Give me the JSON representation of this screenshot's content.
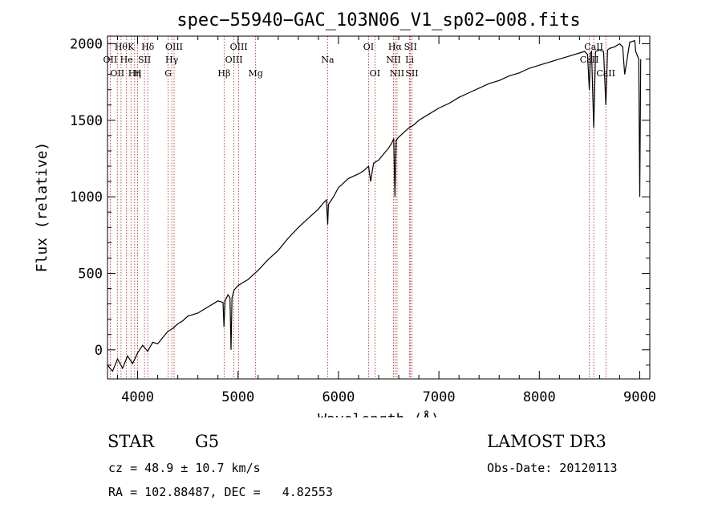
{
  "chart_data": {
    "type": "line",
    "title": "spec−55940−GAC_103N06_V1_sp02−008.fits",
    "xlabel": "Wavelength (Å)",
    "ylabel": "Flux (relative)",
    "xlim": [
      3700,
      9100
    ],
    "ylim": [
      -190,
      2050
    ],
    "xticks": [
      4000,
      5000,
      6000,
      7000,
      8000,
      9000
    ],
    "xtick_labels": [
      "4000",
      "5000",
      "6000",
      "7000",
      "8000",
      "9000"
    ],
    "yticks": [
      0,
      500,
      1000,
      1500,
      2000
    ],
    "ytick_labels": [
      "0",
      "500",
      "1000",
      "1500",
      "2000"
    ],
    "series": [
      {
        "name": "spectrum",
        "x": [
          3700,
          3750,
          3800,
          3850,
          3900,
          3950,
          4000,
          4050,
          4100,
          4150,
          4200,
          4250,
          4300,
          4350,
          4400,
          4450,
          4500,
          4600,
          4700,
          4800,
          4850,
          4860,
          4870,
          4900,
          4920,
          4930,
          4940,
          4960,
          5000,
          5050,
          5100,
          5150,
          5200,
          5300,
          5400,
          5500,
          5600,
          5700,
          5800,
          5850,
          5880,
          5893,
          5900,
          5950,
          6000,
          6100,
          6200,
          6250,
          6300,
          6320,
          6350,
          6400,
          6450,
          6500,
          6530,
          6550,
          6562,
          6575,
          6600,
          6650,
          6700,
          6750,
          6800,
          6900,
          7000,
          7100,
          7200,
          7300,
          7400,
          7500,
          7600,
          7700,
          7800,
          7900,
          8000,
          8100,
          8200,
          8300,
          8400,
          8450,
          8480,
          8498,
          8510,
          8520,
          8542,
          8560,
          8600,
          8640,
          8662,
          8680,
          8700,
          8750,
          8800,
          8830,
          8850,
          8900,
          8950,
          8960,
          8990,
          9000,
          9010
        ],
        "y": [
          -100,
          -140,
          -60,
          -120,
          -40,
          -90,
          -20,
          30,
          -10,
          50,
          40,
          80,
          120,
          140,
          170,
          190,
          220,
          240,
          280,
          320,
          310,
          150,
          320,
          360,
          340,
          0,
          340,
          390,
          420,
          440,
          460,
          490,
          520,
          590,
          650,
          730,
          800,
          860,
          920,
          960,
          980,
          820,
          950,
          1000,
          1060,
          1120,
          1150,
          1170,
          1200,
          1100,
          1220,
          1240,
          1280,
          1320,
          1350,
          1380,
          1000,
          1370,
          1390,
          1420,
          1450,
          1470,
          1500,
          1540,
          1580,
          1610,
          1650,
          1680,
          1710,
          1740,
          1760,
          1790,
          1810,
          1840,
          1860,
          1880,
          1900,
          1920,
          1940,
          1950,
          1930,
          1700,
          1940,
          1950,
          1450,
          1950,
          1960,
          1950,
          1600,
          1960,
          1970,
          1980,
          2000,
          1980,
          1800,
          2010,
          2020,
          1950,
          1900,
          1000,
          1900
        ]
      }
    ],
    "spectral_lines": [
      {
        "wavelength": 3727,
        "label": "OII",
        "row": 2
      },
      {
        "wavelength": 3798,
        "label": "OII",
        "row": 3
      },
      {
        "wavelength": 3835,
        "label": "Hθ",
        "row": 1
      },
      {
        "wavelength": 3889,
        "label": "He",
        "row": 2
      },
      {
        "wavelength": 3934,
        "label": "K",
        "row": 1
      },
      {
        "wavelength": 3970,
        "label": "Hη",
        "row": 3
      },
      {
        "wavelength": 4000,
        "label": "H",
        "row": 3
      },
      {
        "wavelength": 4068,
        "label": "SII",
        "row": 2
      },
      {
        "wavelength": 4101,
        "label": "Hδ",
        "row": 1
      },
      {
        "wavelength": 4304,
        "label": "G",
        "row": 3
      },
      {
        "wavelength": 4340,
        "label": "Hγ",
        "row": 2
      },
      {
        "wavelength": 4363,
        "label": "OIII",
        "row": 1
      },
      {
        "wavelength": 4861,
        "label": "Hβ",
        "row": 3
      },
      {
        "wavelength": 4959,
        "label": "OIII",
        "row": 2
      },
      {
        "wavelength": 5007,
        "label": "OIII",
        "row": 1
      },
      {
        "wavelength": 5175,
        "label": "Mg",
        "row": 3
      },
      {
        "wavelength": 5893,
        "label": "Na",
        "row": 2
      },
      {
        "wavelength": 6300,
        "label": "OI",
        "row": 1
      },
      {
        "wavelength": 6363,
        "label": "OI",
        "row": 3
      },
      {
        "wavelength": 6548,
        "label": "NII",
        "row": 2
      },
      {
        "wavelength": 6563,
        "label": "Hα",
        "row": 1
      },
      {
        "wavelength": 6583,
        "label": "NII",
        "row": 3
      },
      {
        "wavelength": 6708,
        "label": "Li",
        "row": 2
      },
      {
        "wavelength": 6717,
        "label": "SII",
        "row": 1
      },
      {
        "wavelength": 6731,
        "label": "SII",
        "row": 3
      },
      {
        "wavelength": 8498,
        "label": "CaII",
        "row": 2
      },
      {
        "wavelength": 8542,
        "label": "CaII",
        "row": 1
      },
      {
        "wavelength": 8662,
        "label": "CaII",
        "row": 3
      }
    ],
    "grid": false,
    "legend": "none"
  },
  "info": {
    "object_class": "STAR",
    "subclass": "G5",
    "survey": "LAMOST DR3",
    "redshift_line": "cz = 48.9 ± 10.7 km/s",
    "obs_date_line": "Obs-Date: 20120113",
    "coords_line": "RA = 102.88487, DEC =   4.82553"
  },
  "colors": {
    "line_marker": "#b22222",
    "spectrum": "#000000"
  }
}
